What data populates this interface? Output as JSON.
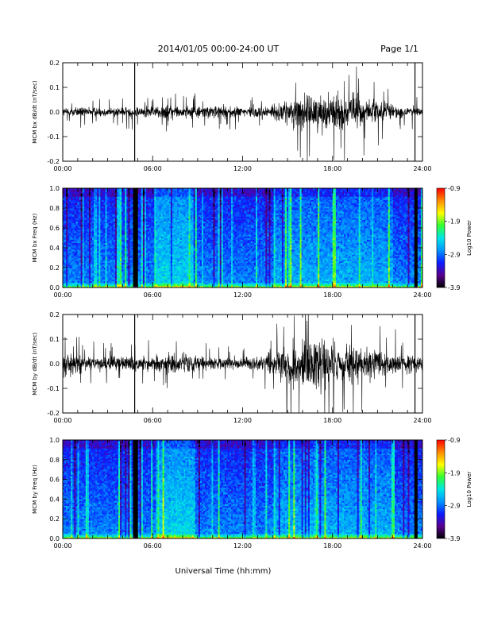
{
  "header": {
    "date_range": "2014/01/05  00:00-24:00 UT",
    "page": "Page 1/1",
    "x_axis_title": "Universal Time (hh:mm)"
  },
  "colors": {
    "background": "#ffffff",
    "trace": "#000000",
    "colormap_stops": [
      "#000000",
      "#5a0090",
      "#0a1cff",
      "#0096ff",
      "#00e6e6",
      "#32ff32",
      "#ffff00",
      "#ff8c00",
      "#ff0000"
    ]
  },
  "chart_data": [
    {
      "type": "line",
      "ylabel": "MCM bx dB/dt (nT/sec)",
      "xlim": [
        "00:00",
        "24:00"
      ],
      "ylim": [
        -0.2,
        0.2
      ],
      "x_ticks": [
        "00:00",
        "06:00",
        "12:00",
        "18:00",
        "24:00"
      ],
      "y_ticks": [
        "-0.2",
        "-0.1",
        "0.0",
        "0.1",
        "0.2"
      ],
      "series": [
        {
          "x_hours": [
            0,
            1,
            2,
            3,
            4,
            5,
            6,
            7,
            8,
            9,
            10,
            11,
            12,
            13,
            14,
            15,
            16,
            17,
            18,
            19,
            20,
            21,
            22,
            23,
            24
          ],
          "envelope_amplitude": [
            0.03,
            0.035,
            0.03,
            0.03,
            0.035,
            0.04,
            0.04,
            0.05,
            0.045,
            0.04,
            0.045,
            0.04,
            0.035,
            0.04,
            0.05,
            0.08,
            0.12,
            0.12,
            0.13,
            0.1,
            0.11,
            0.08,
            0.05,
            0.04,
            0.03
          ]
        }
      ],
      "vertical_lines_hours": [
        4.8,
        23.5
      ]
    },
    {
      "type": "heatmap",
      "ylabel": "MCM bx Freq (Hz)",
      "xlim": [
        "00:00",
        "24:00"
      ],
      "ylim": [
        0.0,
        1.0
      ],
      "x_ticks": [
        "00:00",
        "06:00",
        "12:00",
        "18:00",
        "24:00"
      ],
      "y_ticks": [
        "0.0",
        "0.2",
        "0.4",
        "0.6",
        "0.8",
        "1.0"
      ],
      "colorbar": {
        "label": "Log10 Power",
        "range": [
          -3.9,
          -0.9
        ],
        "ticks": [
          "-0.9",
          "-1.9",
          "-2.9",
          "-3.9"
        ]
      }
    },
    {
      "type": "line",
      "ylabel": "MCM by dB/dt (nT/sec)",
      "xlim": [
        "00:00",
        "24:00"
      ],
      "ylim": [
        -0.2,
        0.2
      ],
      "x_ticks": [
        "00:00",
        "06:00",
        "12:00",
        "18:00",
        "24:00"
      ],
      "y_ticks": [
        "-0.2",
        "-0.1",
        "0.0",
        "0.1",
        "0.2"
      ],
      "series": [
        {
          "x_hours": [
            0,
            1,
            2,
            3,
            4,
            5,
            6,
            7,
            8,
            9,
            10,
            11,
            12,
            13,
            14,
            15,
            16,
            17,
            18,
            19,
            20,
            21,
            22,
            23,
            24
          ],
          "envelope_amplitude": [
            0.09,
            0.06,
            0.05,
            0.045,
            0.05,
            0.05,
            0.055,
            0.07,
            0.07,
            0.05,
            0.045,
            0.04,
            0.04,
            0.05,
            0.08,
            0.12,
            0.17,
            0.18,
            0.16,
            0.12,
            0.12,
            0.09,
            0.08,
            0.06,
            0.05
          ]
        }
      ],
      "vertical_lines_hours": [
        4.8,
        23.5
      ]
    },
    {
      "type": "heatmap",
      "ylabel": "MCM by Freq (Hz)",
      "xlim": [
        "00:00",
        "24:00"
      ],
      "ylim": [
        0.0,
        1.0
      ],
      "x_ticks": [
        "00:00",
        "06:00",
        "12:00",
        "18:00",
        "24:00"
      ],
      "y_ticks": [
        "0.0",
        "0.2",
        "0.4",
        "0.6",
        "0.8",
        "1.0"
      ],
      "colorbar": {
        "label": "Log10 Power",
        "range": [
          -3.9,
          -0.9
        ],
        "ticks": [
          "-0.9",
          "-1.9",
          "-2.9",
          "-3.9"
        ]
      }
    }
  ]
}
